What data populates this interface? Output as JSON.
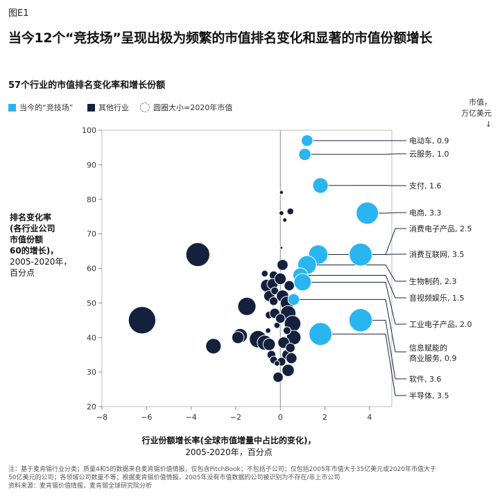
{
  "figure_label": "图E1",
  "title": "当今12个“竞技场”呈现出极为频繁的市值排名变化和显著的市值份额增长",
  "chart_data": {
    "type": "scatter",
    "title": "57个行业的市值排名变化率和增长份额",
    "legend": {
      "arena": "当今的“竞技场”",
      "other": "其他行业",
      "size_note": "圆圈大小=2020年市值"
    },
    "market_value_header": [
      "市值，",
      "万亿美元"
    ],
    "xlabel": "行业份额增长率(全球市值增量中占比的变化)，",
    "xlabel_sub": "2005-2020年，百分点",
    "ylabel": "排名变化率(各行业公司市值份额60的增长)，",
    "ylabel_lines": [
      "排名变化率",
      "(各行业公司",
      "市值份额",
      "60的增长)，"
    ],
    "ylabel_sub": [
      "2005-2020年，",
      "百分点"
    ],
    "xlim": [
      -8,
      5
    ],
    "ylim": [
      20,
      100
    ],
    "xticks": [
      -8,
      -6,
      -4,
      -2,
      0,
      2,
      4
    ],
    "yticks": [
      20,
      30,
      40,
      50,
      60,
      70,
      80,
      90,
      100
    ],
    "colors": {
      "arena": "#29b6f0",
      "other": "#14213d",
      "leader": "#14213d"
    },
    "arena_series": [
      {
        "label": "电动车, 0.9",
        "x": 1.2,
        "y": 97,
        "size": 0.9
      },
      {
        "label": "云服务, 1.0",
        "x": 1.1,
        "y": 93,
        "size": 1.0
      },
      {
        "label": "支付, 1.6",
        "x": 1.8,
        "y": 84,
        "size": 1.6
      },
      {
        "label": "电商, 3.3",
        "x": 3.9,
        "y": 76,
        "size": 3.3
      },
      {
        "label": "消费电子产品, 2.5",
        "x": 1.7,
        "y": 64,
        "size": 2.5
      },
      {
        "label": "消费互联网, 3.5",
        "x": 3.6,
        "y": 64,
        "size": 3.5
      },
      {
        "label": "生物制药, 2.3",
        "x": 1.2,
        "y": 61,
        "size": 2.3
      },
      {
        "label": "音视频娱乐, 1.5",
        "x": 0.9,
        "y": 58,
        "size": 1.5
      },
      {
        "label": "工业电子产品, 2.0",
        "x": 1.0,
        "y": 56,
        "size": 2.0
      },
      {
        "label": "信息赋能的商业服务, 0.9",
        "x": 0.6,
        "y": 51,
        "size": 0.9
      },
      {
        "label": "软件, 3.6",
        "x": 3.6,
        "y": 45,
        "size": 3.6
      },
      {
        "label": "半导体, 3.5",
        "x": 1.8,
        "y": 41,
        "size": 3.5
      }
    ],
    "other_series": [
      {
        "x": -6.2,
        "y": 45,
        "size": 5.0
      },
      {
        "x": -3.7,
        "y": 64,
        "size": 3.8
      },
      {
        "x": -3.0,
        "y": 37.5,
        "size": 1.6
      },
      {
        "x": -1.5,
        "y": 49,
        "size": 2.2
      },
      {
        "x": -1.8,
        "y": 40.5,
        "size": 1.4
      },
      {
        "x": -1.9,
        "y": 40,
        "size": 1.0
      },
      {
        "x": -1.0,
        "y": 39.5,
        "size": 2.0
      },
      {
        "x": -0.7,
        "y": 38.5,
        "size": 1.5
      },
      {
        "x": -0.5,
        "y": 38,
        "size": 1.0
      },
      {
        "x": -0.6,
        "y": 55,
        "size": 1.1
      },
      {
        "x": -0.5,
        "y": 52,
        "size": 0.8
      },
      {
        "x": -0.3,
        "y": 58,
        "size": 0.5
      },
      {
        "x": -0.35,
        "y": 55.5,
        "size": 0.8
      },
      {
        "x": -0.25,
        "y": 53.5,
        "size": 0.4
      },
      {
        "x": -0.5,
        "y": 46.5,
        "size": 0.4
      },
      {
        "x": -0.3,
        "y": 50.5,
        "size": 0.5
      },
      {
        "x": -0.25,
        "y": 47,
        "size": 0.7
      },
      {
        "x": 0.0,
        "y": 57,
        "size": 0.9
      },
      {
        "x": 0.1,
        "y": 61,
        "size": 0.8
      },
      {
        "x": 0.4,
        "y": 55,
        "size": 0.7
      },
      {
        "x": 0.1,
        "y": 52,
        "size": 1.0
      },
      {
        "x": 0.3,
        "y": 50,
        "size": 1.2
      },
      {
        "x": 0.35,
        "y": 47,
        "size": 1.6
      },
      {
        "x": 0.55,
        "y": 44,
        "size": 1.8
      },
      {
        "x": 0.0,
        "y": 45.5,
        "size": 0.6
      },
      {
        "x": 0.6,
        "y": 40,
        "size": 1.4
      },
      {
        "x": 0.15,
        "y": 38.5,
        "size": 0.9
      },
      {
        "x": 0.3,
        "y": 35,
        "size": 0.7
      },
      {
        "x": -0.4,
        "y": 35,
        "size": 0.5
      },
      {
        "x": -0.3,
        "y": 33.5,
        "size": 0.4
      },
      {
        "x": 0.5,
        "y": 34,
        "size": 0.8
      },
      {
        "x": 0.05,
        "y": 33,
        "size": 0.5
      },
      {
        "x": 0.35,
        "y": 30.5,
        "size": 1.0
      },
      {
        "x": -0.1,
        "y": 28.5,
        "size": 0.7
      },
      {
        "x": 0.3,
        "y": 42,
        "size": 0.4
      },
      {
        "x": 0.45,
        "y": 37,
        "size": 0.6
      },
      {
        "x": 0.05,
        "y": 82,
        "size": 0.1
      },
      {
        "x": 0.45,
        "y": 76.5,
        "size": 0.3
      },
      {
        "x": 0.05,
        "y": 76,
        "size": 0.15
      },
      {
        "x": 0.2,
        "y": 74,
        "size": 0.12
      },
      {
        "x": 0.05,
        "y": 66,
        "size": 0.05
      },
      {
        "x": -0.7,
        "y": 58.5,
        "size": 0.3
      },
      {
        "x": -0.15,
        "y": 43.5,
        "size": 0.25
      },
      {
        "x": -0.55,
        "y": 42,
        "size": 0.2
      },
      {
        "x": -0.15,
        "y": 32.5,
        "size": 0.2
      }
    ]
  },
  "footnote_lines": [
    "注：基于麦肯锡行业分类；质量4和5的数据来自麦肯锡价值情报，仅包含PitchBook；不包括子公司；仅包括2005年市值大于35亿美元或2020年市值大于",
    "50亿美元的公司；各领域公司数量不等；根据麦肯锡价值情报，2005年没有市值数据的公司被识别为不存在/非上市公司",
    "资料来源：麦肯锡价值情报，麦肯锡全球研究院分析"
  ]
}
